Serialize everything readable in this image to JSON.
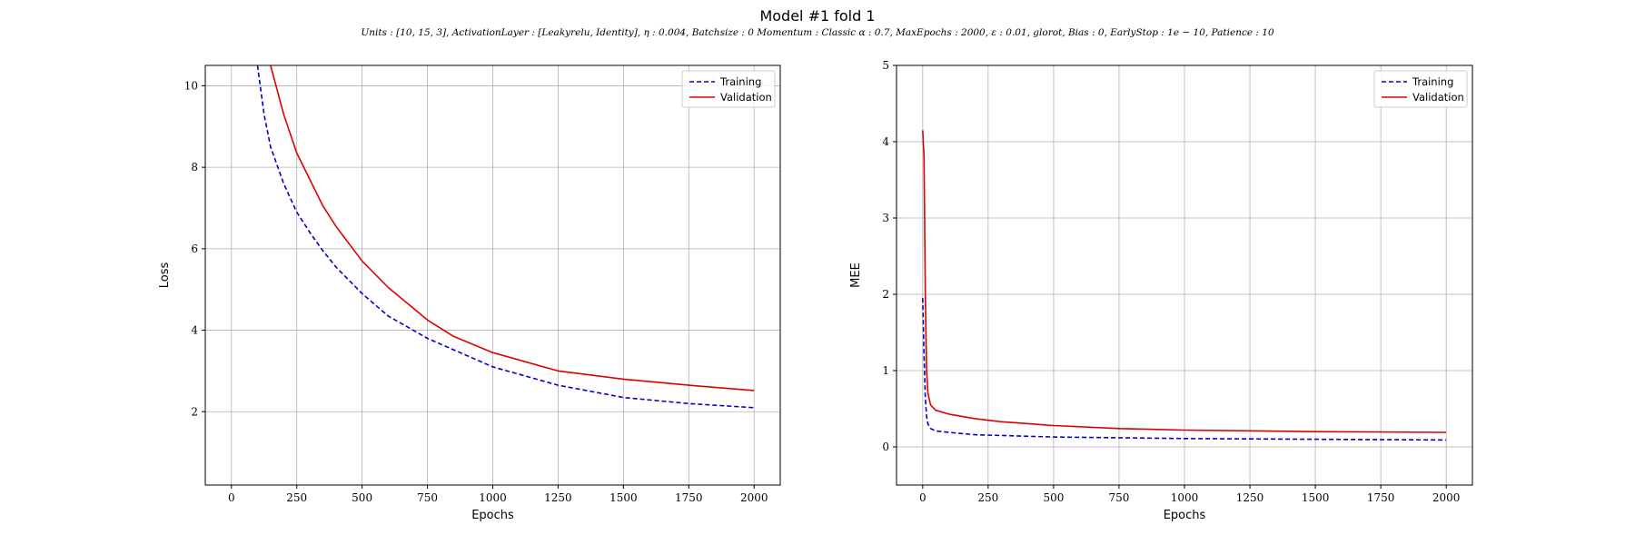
{
  "figure": {
    "title": "Model #1 fold 1",
    "subtitle": "Units : [10, 15, 3], ActivationLayer : [Leakyrelu, Identity], η : 0.004, Batchsize : 0 Momentum : Classic α : 0.7, MaxEpochs : 2000, ε : 0.01, glorot, Bias : 0, EarlyStop : 1e − 10, Patience : 10"
  },
  "chart_data": [
    {
      "type": "line",
      "xlabel": "Epochs",
      "ylabel": "Loss",
      "xlim": [
        -100,
        2100
      ],
      "ylim": [
        0.2,
        10.5
      ],
      "xticks": [
        0,
        250,
        500,
        750,
        1000,
        1250,
        1500,
        1750,
        2000
      ],
      "yticks": [
        2,
        4,
        6,
        8,
        10
      ],
      "grid": true,
      "legend": "top-right",
      "series": [
        {
          "name": "Training",
          "color": "#0000cc",
          "style": "dashed",
          "x": [
            100,
            125,
            150,
            200,
            250,
            300,
            350,
            400,
            500,
            600,
            750,
            1000,
            1250,
            1500,
            1750,
            2000
          ],
          "y": [
            10.5,
            9.3,
            8.5,
            7.6,
            6.9,
            6.4,
            5.95,
            5.55,
            4.9,
            4.35,
            3.8,
            3.1,
            2.65,
            2.35,
            2.2,
            2.1
          ]
        },
        {
          "name": "Validation",
          "color": "#dd0000",
          "style": "solid",
          "x": [
            150,
            175,
            200,
            250,
            300,
            350,
            400,
            500,
            600,
            750,
            850,
            1000,
            1250,
            1500,
            1750,
            2000
          ],
          "y": [
            10.5,
            9.9,
            9.3,
            8.35,
            7.7,
            7.05,
            6.55,
            5.7,
            5.05,
            4.25,
            3.85,
            3.45,
            3.0,
            2.8,
            2.65,
            2.52
          ]
        }
      ]
    },
    {
      "type": "line",
      "xlabel": "Epochs",
      "ylabel": "MEE",
      "xlim": [
        -100,
        2100
      ],
      "ylim": [
        -0.5,
        5
      ],
      "xticks": [
        0,
        250,
        500,
        750,
        1000,
        1250,
        1500,
        1750,
        2000
      ],
      "yticks": [
        0,
        1,
        2,
        3,
        4,
        5
      ],
      "grid": true,
      "legend": "top-right",
      "series": [
        {
          "name": "Training",
          "color": "#0000cc",
          "style": "dashed",
          "x": [
            0,
            5,
            10,
            15,
            20,
            30,
            50,
            100,
            200,
            500,
            1000,
            1500,
            2000
          ],
          "y": [
            1.95,
            1.2,
            0.65,
            0.4,
            0.3,
            0.24,
            0.21,
            0.19,
            0.16,
            0.13,
            0.11,
            0.1,
            0.09
          ],
          "line_dash": "6,4"
        },
        {
          "name": "Validation",
          "color": "#dd0000",
          "style": "solid",
          "x": [
            0,
            5,
            10,
            15,
            20,
            30,
            50,
            100,
            200,
            300,
            500,
            750,
            1000,
            1500,
            2000
          ],
          "y": [
            4.15,
            3.8,
            2.0,
            1.0,
            0.7,
            0.55,
            0.48,
            0.43,
            0.37,
            0.33,
            0.28,
            0.24,
            0.22,
            0.2,
            0.19
          ]
        }
      ]
    }
  ]
}
